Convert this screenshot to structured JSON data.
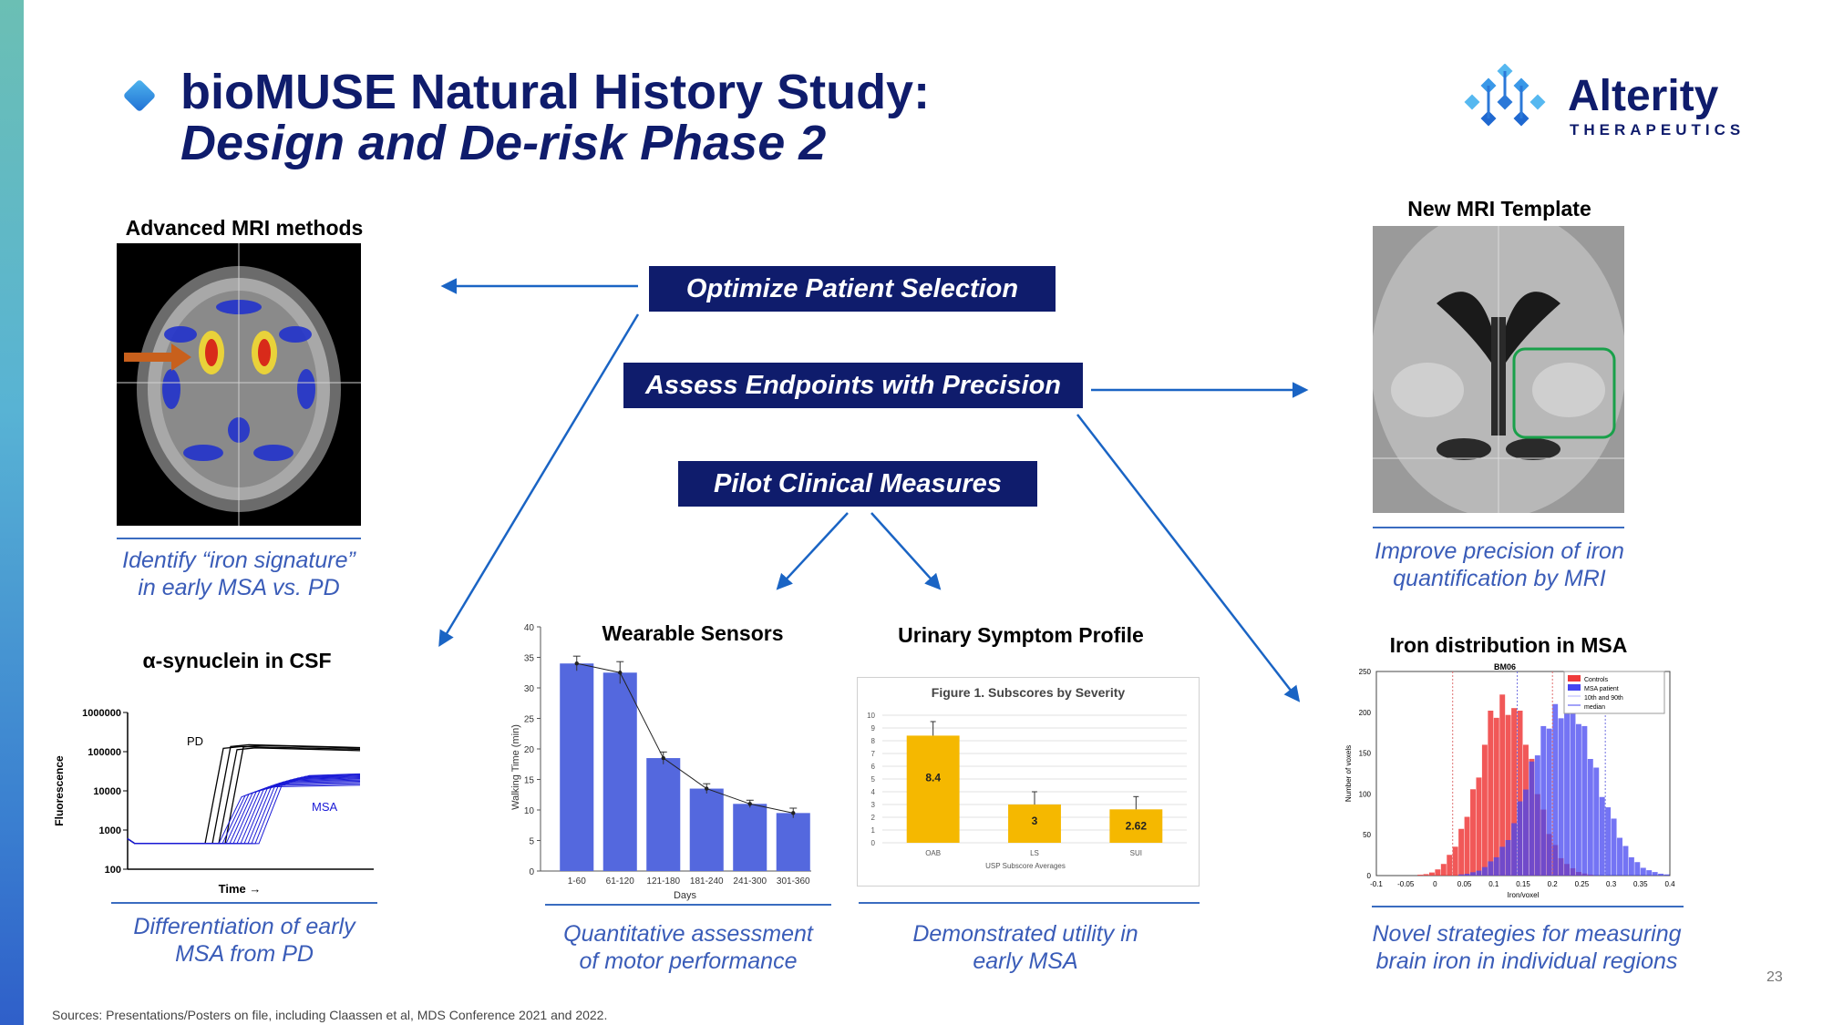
{
  "title": {
    "line1": "bioMUSE Natural History Study:",
    "line2": "Design and De-risk Phase 2"
  },
  "logo": {
    "name": "Alterity",
    "sub": "THERAPEUTICS",
    "icon": "alterity-molecule-logo"
  },
  "boxes": {
    "optimize": "Optimize Patient Selection",
    "assess": "Assess Endpoints with Precision",
    "pilot": "Pilot Clinical Measures"
  },
  "panels": {
    "mri": {
      "heading": "Advanced MRI methods",
      "caption_line1": "Identify “iron signature”",
      "caption_line2": "in early MSA vs. PD"
    },
    "template": {
      "heading": "New MRI Template",
      "caption_line1": "Improve precision of iron",
      "caption_line2": "quantification by MRI"
    },
    "csf": {
      "heading": "α-synuclein in CSF",
      "caption_line1": "Differentiation of early",
      "caption_line2": "MSA from PD"
    },
    "wearable": {
      "heading": "Wearable Sensors",
      "caption_line1": "Quantitative assessment",
      "caption_line2": "of motor performance"
    },
    "urinary": {
      "heading": "Urinary Symptom Profile",
      "caption_line1": "Demonstrated utility in",
      "caption_line2": "early MSA"
    },
    "iron": {
      "heading": "Iron distribution in MSA",
      "caption_line1": "Novel strategies for measuring",
      "caption_line2": "brain iron in individual regions"
    }
  },
  "chart_data": [
    {
      "type": "line",
      "ylabel": "Fluorescence",
      "xlabel": "Time",
      "yscale": "log",
      "yticks": [
        "1000000",
        "100000",
        "10000",
        "1000",
        "100"
      ],
      "labels": [
        "PD",
        "MSA"
      ],
      "colors": {
        "PD": "#000000",
        "MSA": "#1a1ad6"
      }
    },
    {
      "type": "bar",
      "title": "",
      "xlabel": "Days",
      "ylabel": "Walking Time (min)",
      "categories": [
        "1-60",
        "61-120",
        "121-180",
        "181-240",
        "241-300",
        "301-360"
      ],
      "values": [
        34,
        32.5,
        18.5,
        13.5,
        11,
        9.5
      ],
      "errors": [
        1.2,
        1.8,
        1.0,
        0.8,
        0.6,
        0.8
      ],
      "ylim": [
        0,
        40
      ],
      "yticks": [
        "0",
        "5",
        "10",
        "15",
        "20",
        "25",
        "30",
        "35",
        "40"
      ],
      "color": "#5468de"
    },
    {
      "type": "bar",
      "title": "Figure 1. Subscores by Severity",
      "xlabel": "USP Subscore Averages",
      "categories": [
        "OAB",
        "LS",
        "SUI"
      ],
      "values": [
        8.4,
        3,
        2.62
      ],
      "value_labels": [
        "8.4",
        "3",
        "2.62"
      ],
      "errors": [
        1.1,
        1.0,
        1.0
      ],
      "ylim": [
        0,
        10
      ],
      "yticks": [
        "0",
        "1",
        "2",
        "3",
        "4",
        "5",
        "6",
        "7",
        "8",
        "9",
        "10"
      ],
      "color": "#f5b800"
    },
    {
      "type": "bar",
      "title": "BM06",
      "xlabel": "Iron/voxel",
      "ylabel": "Number of voxels",
      "xticks": [
        "-0.1",
        "-0.05",
        "0",
        "0.05",
        "0.1",
        "0.15",
        "0.2",
        "0.25",
        "0.3",
        "0.35",
        "0.4"
      ],
      "yticks": [
        "0",
        "50",
        "100",
        "150",
        "200",
        "250"
      ],
      "ylim": [
        0,
        250
      ],
      "xlim": [
        -0.1,
        0.4
      ],
      "legend": [
        "Controls",
        "MSA patient",
        "10th and 90th",
        "median"
      ],
      "legend_position": "top-right",
      "series": [
        {
          "name": "Controls",
          "color": "#ef3b3b",
          "center": 0.12,
          "spread": 0.045,
          "peak": 220
        },
        {
          "name": "MSA patient",
          "color": "#4646f0",
          "center": 0.22,
          "spread": 0.055,
          "peak": 215
        }
      ]
    }
  ],
  "footer": {
    "sources": "Sources: Presentations/Posters on file, including Claassen et al, MDS Conference 2021 and 2022.",
    "page": "23"
  }
}
